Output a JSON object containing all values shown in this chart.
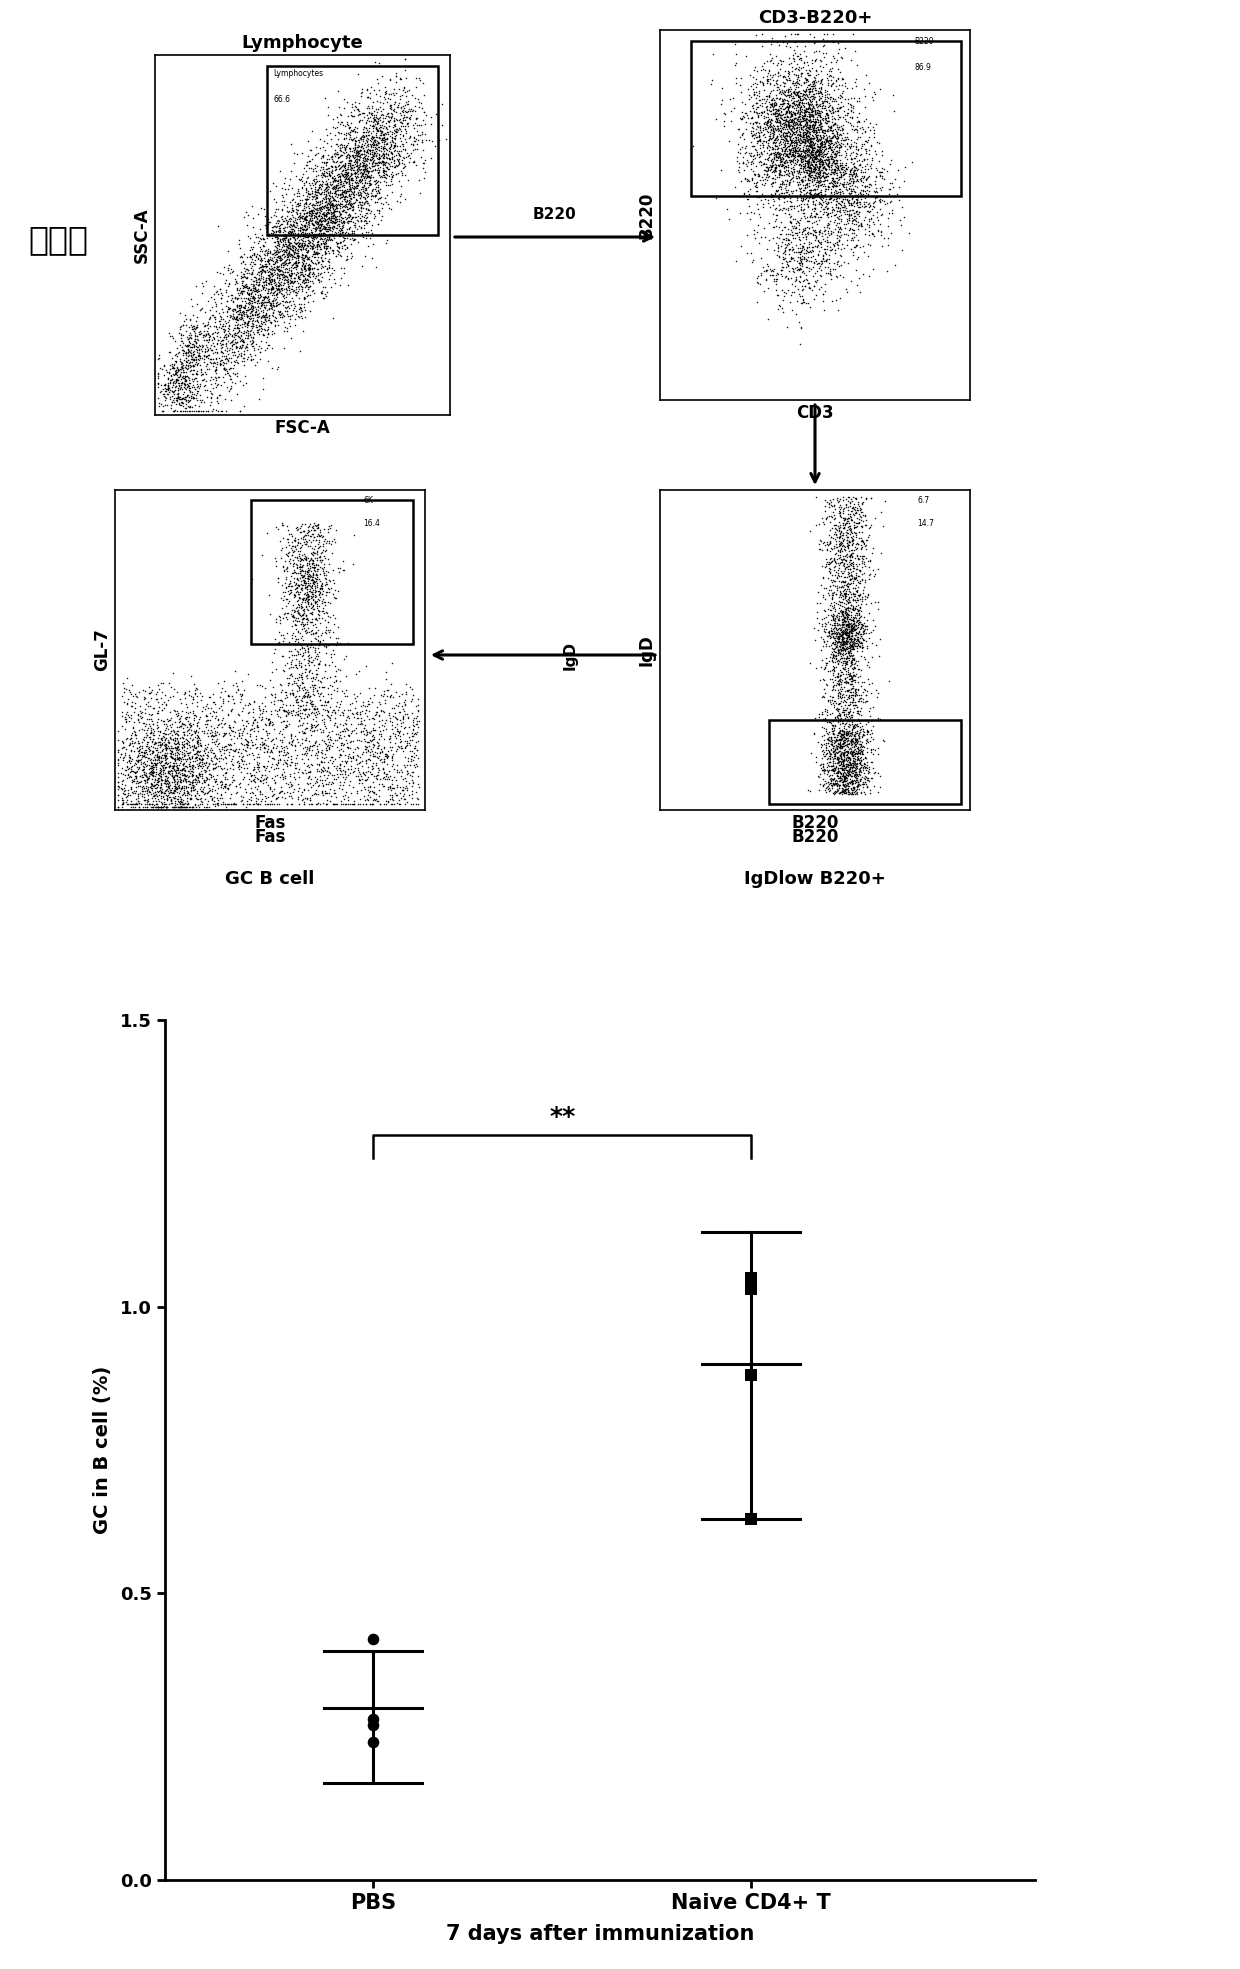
{
  "title_top": "实验组",
  "plot1_title": "Lymphocyte",
  "plot1_xlabel": "FSC-A",
  "plot1_ylabel": "SSC-A",
  "plot2_title": "CD3-B220+",
  "plot2_xlabel": "CD3",
  "plot2_ylabel": "B220",
  "plot3_xlabel": "B220",
  "plot3_ylabel": "IgD",
  "plot4_xlabel": "Fas",
  "plot4_ylabel": "GL-7",
  "label_gc_b_cell": "GC B cell",
  "label_igdlow_b220": "IgDlow B220+",
  "scatter_xlabel": "7 days after immunization",
  "scatter_ylabel": "GC in B cell (%)",
  "scatter_groups": [
    "PBS",
    "Naive CD4+ T"
  ],
  "pbs_points": [
    0.28,
    0.24,
    0.42,
    0.27
  ],
  "pbs_mean": 0.3,
  "pbs_sd_low": 0.17,
  "pbs_sd_high": 0.4,
  "naive_points": [
    1.05,
    1.03,
    0.63,
    0.88
  ],
  "naive_mean": 0.9,
  "naive_sd_low": 0.63,
  "naive_sd_high": 1.13,
  "scatter_ylim": [
    0.0,
    1.5
  ],
  "scatter_yticks": [
    0.0,
    0.5,
    1.0,
    1.5
  ],
  "significance": "**",
  "bg_color": "#ffffff",
  "dot_color": "#000000"
}
